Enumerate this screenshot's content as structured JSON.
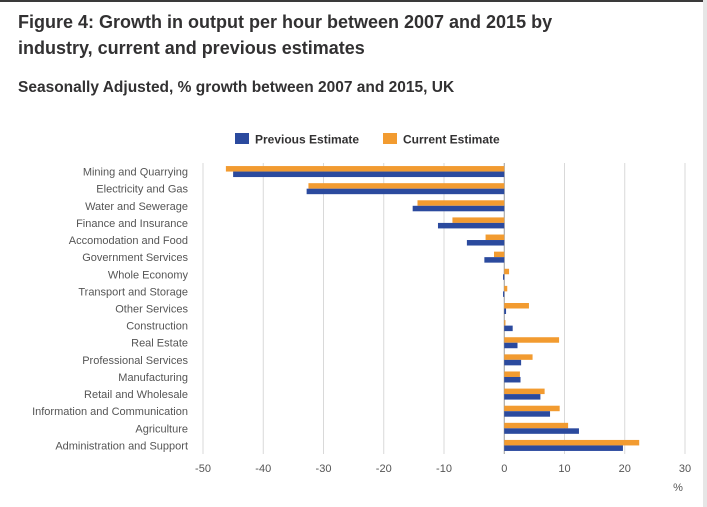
{
  "page": {
    "title": "Figure 4: Growth in output per hour between 2007 and 2015 by industry, current and previous estimates",
    "subtitle": "Seasonally Adjusted, % growth between 2007 and 2015, UK"
  },
  "colors": {
    "previous": "#2b4a9e",
    "current": "#f29b30",
    "grid": "#d9d9d9",
    "text": "#555555"
  },
  "chart_data": {
    "type": "bar",
    "orientation": "horizontal",
    "title": "Figure 4: Growth in output per hour between 2007 and 2015 by industry, current and previous estimates",
    "subtitle": "Seasonally Adjusted, % growth between 2007 and 2015, UK",
    "xlabel": "%",
    "ylabel": "",
    "xlim": [
      -50,
      30
    ],
    "xticks": [
      -50,
      -40,
      -30,
      -20,
      -10,
      0,
      10,
      20,
      30
    ],
    "grid": true,
    "legend_position": "top",
    "categories": [
      "Mining and Quarrying",
      "Electricity and Gas",
      "Water and Sewerage",
      "Finance and Insurance",
      "Accomodation and Food",
      "Government Services",
      "Whole Economy",
      "Transport and Storage",
      "Other Services",
      "Construction",
      "Real Estate",
      "Professional Services",
      "Manufacturing",
      "Retail and Wholesale",
      "Information and Communication",
      "Agriculture",
      "Administration and Support"
    ],
    "series": [
      {
        "name": "Previous Estimate",
        "values": [
          -45,
          -32.8,
          -15.2,
          -11,
          -6.2,
          -3.3,
          -0.2,
          -0.2,
          0.3,
          1.4,
          2.2,
          2.8,
          2.7,
          6,
          7.6,
          12.4,
          19.7
        ]
      },
      {
        "name": "Current Estimate",
        "values": [
          -46.2,
          -32.5,
          -14.4,
          -8.6,
          -3.1,
          -1.7,
          0.8,
          0.5,
          4.1,
          0.2,
          9.1,
          4.7,
          2.6,
          6.7,
          9.2,
          10.6,
          22.4
        ]
      }
    ]
  }
}
